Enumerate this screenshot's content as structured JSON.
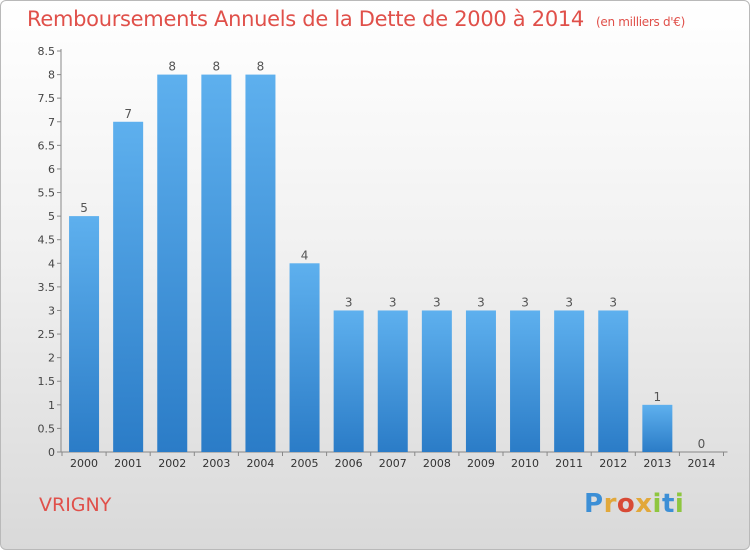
{
  "header": {
    "title": "Remboursements Annuels de la Dette de 2000 à 2014",
    "subtitle": "(en milliers d'€)"
  },
  "footer": {
    "commune": "VRIGNY",
    "brand_letters": [
      "P",
      "r",
      "o",
      "x",
      "i",
      "t",
      "i"
    ],
    "brand_colors": [
      "#3c8fd6",
      "#e2a83a",
      "#d84a35",
      "#e2a83a",
      "#8ec63f",
      "#3c8fd6",
      "#8ec63f"
    ]
  },
  "chart_data": {
    "type": "bar",
    "categories": [
      "2000",
      "2001",
      "2002",
      "2003",
      "2004",
      "2005",
      "2006",
      "2007",
      "2008",
      "2009",
      "2010",
      "2011",
      "2012",
      "2013",
      "2014"
    ],
    "values": [
      5,
      7,
      8,
      8,
      8,
      4,
      3,
      3,
      3,
      3,
      3,
      3,
      3,
      1,
      0
    ],
    "data_labels": [
      "5",
      "7",
      "8",
      "8",
      "8",
      "4",
      "3",
      "3",
      "3",
      "3",
      "3",
      "3",
      "3",
      "1",
      "0"
    ],
    "y_ticks": [
      0,
      0.5,
      1,
      1.5,
      2,
      2.5,
      3,
      3.5,
      4,
      4.5,
      5,
      5.5,
      6,
      6.5,
      7,
      7.5,
      8,
      8.5
    ],
    "y_tick_labels": [
      "0",
      "0.5",
      "1",
      "1.5",
      "2",
      "2.5",
      "3",
      "3.5",
      "4",
      "4.5",
      "5",
      "5.5",
      "6",
      "6.5",
      "7",
      "7.5",
      "8",
      "8.5"
    ],
    "ylim": [
      0,
      8.5
    ],
    "grid": false,
    "bar_color": "#4a9fe3",
    "bar_color_dark": "#2a7bc6"
  }
}
